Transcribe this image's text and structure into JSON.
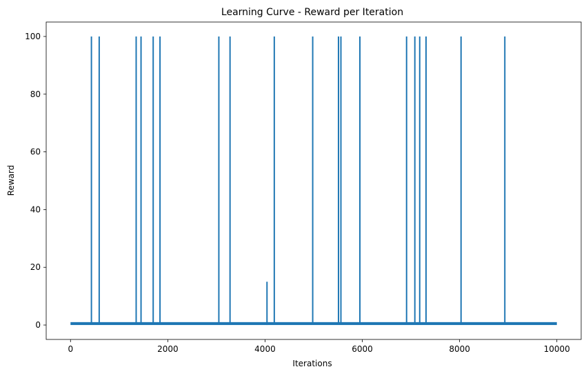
{
  "chart_data": {
    "type": "line",
    "title": "Learning Curve - Reward per Iteration",
    "xlabel": "Iterations",
    "ylabel": "Reward",
    "xlim": [
      -500,
      10500
    ],
    "ylim": [
      -5,
      105
    ],
    "xticks": [
      0,
      2000,
      4000,
      6000,
      8000,
      10000
    ],
    "yticks": [
      0,
      20,
      40,
      60,
      80,
      100
    ],
    "grid": false,
    "legend": "none",
    "series": [
      {
        "color": "#1f77b4",
        "baseline_value": 1,
        "x_range": [
          0,
          10000
        ],
        "spikes": [
          {
            "x": 430,
            "y": 100
          },
          {
            "x": 590,
            "y": 100
          },
          {
            "x": 1350,
            "y": 100
          },
          {
            "x": 1450,
            "y": 100
          },
          {
            "x": 1700,
            "y": 100
          },
          {
            "x": 1840,
            "y": 100
          },
          {
            "x": 3050,
            "y": 100
          },
          {
            "x": 3280,
            "y": 100
          },
          {
            "x": 4040,
            "y": 15
          },
          {
            "x": 4190,
            "y": 100
          },
          {
            "x": 4980,
            "y": 100
          },
          {
            "x": 5510,
            "y": 100
          },
          {
            "x": 5560,
            "y": 100
          },
          {
            "x": 5950,
            "y": 100
          },
          {
            "x": 6910,
            "y": 100
          },
          {
            "x": 7080,
            "y": 100
          },
          {
            "x": 7180,
            "y": 100
          },
          {
            "x": 7310,
            "y": 100
          },
          {
            "x": 8030,
            "y": 100
          },
          {
            "x": 8930,
            "y": 100
          }
        ]
      }
    ]
  }
}
